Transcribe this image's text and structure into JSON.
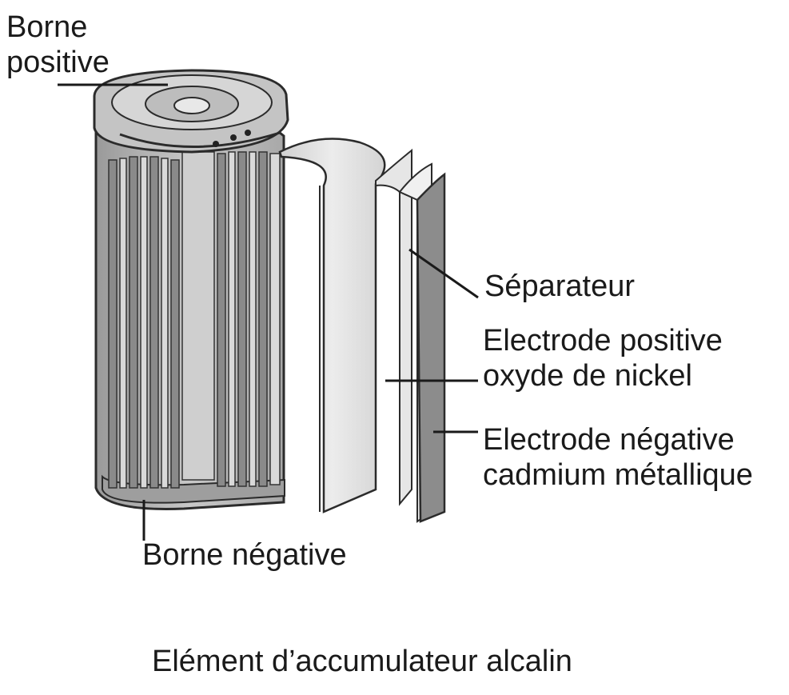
{
  "labels": {
    "borne_positive": [
      "Borne",
      "positive"
    ],
    "separateur": "Séparateur",
    "electrode_positive": [
      "Electrode positive",
      "oxyde de nickel"
    ],
    "electrode_negative": [
      "Electrode négative",
      "cadmium métallique"
    ],
    "borne_negative": "Borne négative"
  },
  "caption": "Elément d’accumulateur alcalin",
  "colors": {
    "metal": "#b9b9b9",
    "dark_metal": "#7d7d7d",
    "sheet": "#e2e2e2",
    "negative_plate": "#8c8c8c",
    "outline": "#2b2b2b"
  }
}
